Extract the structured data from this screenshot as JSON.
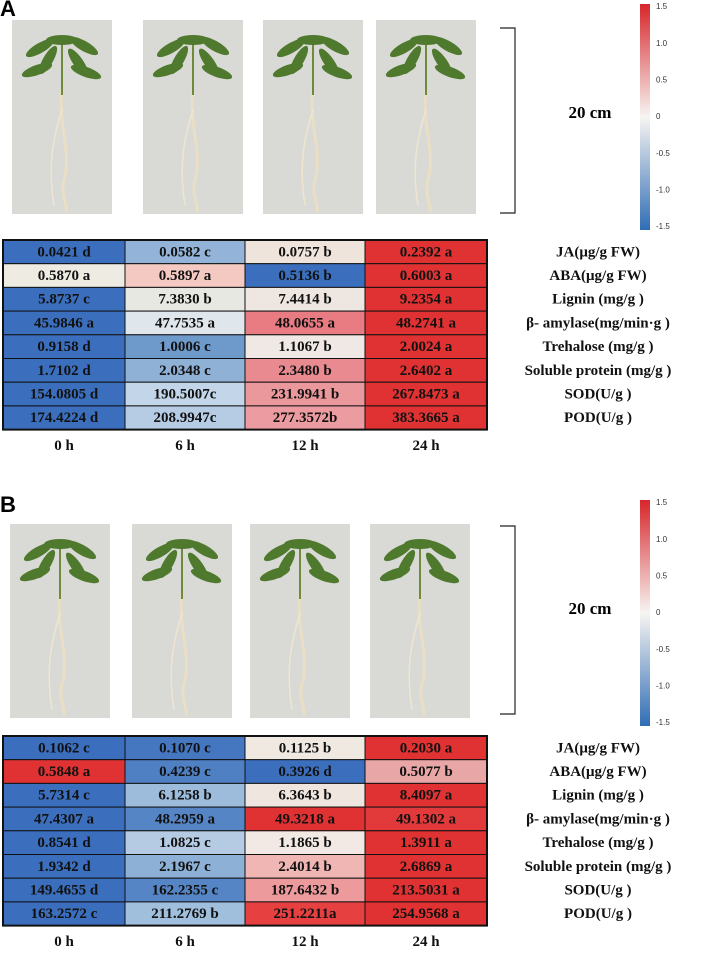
{
  "panels": [
    {
      "label": "A",
      "scale_text": "20 cm",
      "colorbar_ticks": [
        "1.5",
        "1.0",
        "0.5",
        "0",
        "-0.5",
        "-1.0",
        "-1.5"
      ],
      "columns": [
        "0 h",
        "6 h",
        "12 h",
        "24 h"
      ],
      "rows": [
        {
          "label": "JA(μg/g FW)",
          "cells": [
            "0.0421 d",
            "0.0582 c",
            "0.0757 b",
            "0.2392 a"
          ],
          "colors": [
            "#3b6fbe",
            "#93b4d8",
            "#efe4dc",
            "#e03232"
          ]
        },
        {
          "label": "ABA(μg/g FW)",
          "cells": [
            "0.5870 a",
            "0.5897 a",
            "0.5136 b",
            "0.6003 a"
          ],
          "colors": [
            "#eeebe2",
            "#f3c9c1",
            "#3b6fbe",
            "#e03232"
          ]
        },
        {
          "label": "Lignin (mg/g )",
          "cells": [
            "5.8737 c",
            "7.3830 b",
            "7.4414 b",
            "9.2354 a"
          ],
          "colors": [
            "#3b6fbe",
            "#e8e8e2",
            "#eee6e0",
            "#e03232"
          ]
        },
        {
          "label": "β- amylase(mg/min·g )",
          "cells": [
            "45.9846 a",
            "47.7535 a",
            "48.0655 a",
            "48.2741 a"
          ],
          "colors": [
            "#3b6fbe",
            "#dfe6ec",
            "#e87c82",
            "#e03232"
          ]
        },
        {
          "label": "Trehalose (mg/g )",
          "cells": [
            "0.9158 d",
            "1.0006 c",
            "1.1067 b",
            "2.0024 a"
          ],
          "colors": [
            "#3b6fbe",
            "#6e9acb",
            "#efe8e4",
            "#e03232"
          ]
        },
        {
          "label": "Soluble protein (mg/g )",
          "cells": [
            "1.7102 d",
            "2.0348 c",
            "2.3480 b",
            "2.6402 a"
          ],
          "colors": [
            "#3b6fbe",
            "#8fb1d6",
            "#e88a90",
            "#e03232"
          ]
        },
        {
          "label": "SOD(U/g )",
          "cells": [
            "154.0805 d",
            "190.5007c",
            "231.9941 b",
            "267.8473 a"
          ],
          "colors": [
            "#3b6fbe",
            "#c3d5e8",
            "#ea989c",
            "#e03232"
          ]
        },
        {
          "label": "POD(U/g )",
          "cells": [
            "174.4224 d",
            "208.9947c",
            "277.3572b",
            "383.3665 a"
          ],
          "colors": [
            "#3b6fbe",
            "#b6cce4",
            "#ec9ca0",
            "#e03232"
          ]
        }
      ]
    },
    {
      "label": "B",
      "scale_text": "20 cm",
      "colorbar_ticks": [
        "1.5",
        "1.0",
        "0.5",
        "0",
        "-0.5",
        "-1.0",
        "-1.5"
      ],
      "columns": [
        "0 h",
        "6 h",
        "12 h",
        "24 h"
      ],
      "rows": [
        {
          "label": "JA(μg/g FW)",
          "cells": [
            "0.1062 c",
            "0.1070 c",
            "0.1125 b",
            "0.2030 a"
          ],
          "colors": [
            "#3b6fbe",
            "#4477c0",
            "#f0e9e2",
            "#e03232"
          ]
        },
        {
          "label": "ABA(μg/g FW)",
          "cells": [
            "0.5848 a",
            "0.4239 c",
            "0.3926 d",
            "0.5077 b"
          ],
          "colors": [
            "#e03232",
            "#4f80c3",
            "#3b6fbe",
            "#e9a6a6"
          ]
        },
        {
          "label": "Lignin (mg/g )",
          "cells": [
            "5.7314 c",
            "6.1258 b",
            "6.3643 b",
            "8.4097 a"
          ],
          "colors": [
            "#3b6fbe",
            "#9dbcdc",
            "#efe6e0",
            "#e03232"
          ]
        },
        {
          "label": "β- amylase(mg/min·g )",
          "cells": [
            "47.4307 a",
            "48.2959 a",
            "49.3218 a",
            "49.1302 a"
          ],
          "colors": [
            "#3b6fbe",
            "#5585c4",
            "#e03232",
            "#e23a3a"
          ]
        },
        {
          "label": "Trehalose (mg/g )",
          "cells": [
            "0.8541 d",
            "1.0825 c",
            "1.1865 b",
            "1.3911 a"
          ],
          "colors": [
            "#3b6fbe",
            "#b5cbe3",
            "#f2e8e4",
            "#e03232"
          ]
        },
        {
          "label": "Soluble protein (mg/g )",
          "cells": [
            "1.9342 d",
            "2.1967 c",
            "2.4014 b",
            "2.6869 a"
          ],
          "colors": [
            "#3b6fbe",
            "#8db0d6",
            "#f0b6b4",
            "#e03232"
          ]
        },
        {
          "label": "SOD(U/g )",
          "cells": [
            "149.4655 d",
            "162.2355 c",
            "187.6432 b",
            "213.5031 a"
          ],
          "colors": [
            "#3b6fbe",
            "#5585c4",
            "#ec9a9c",
            "#e03232"
          ]
        },
        {
          "label": "POD(U/g )",
          "cells": [
            "163.2572 c",
            "211.2769 b",
            "251.2211a",
            "254.9568 a"
          ],
          "colors": [
            "#3b6fbe",
            "#9fbfdc",
            "#e64040",
            "#e03232"
          ]
        }
      ]
    }
  ]
}
